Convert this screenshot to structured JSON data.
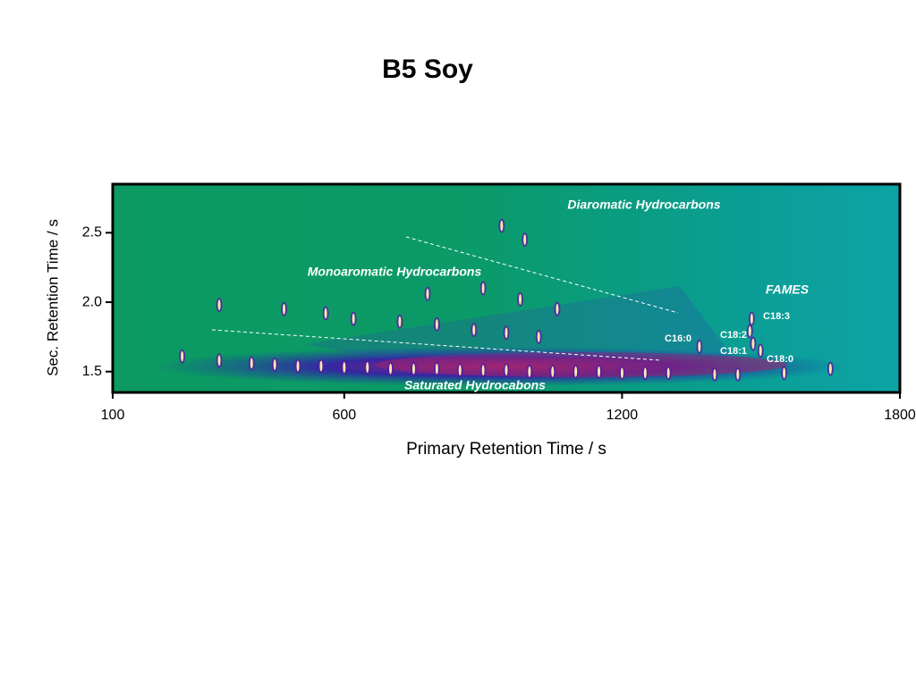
{
  "chart_data": {
    "type": "scatter",
    "title": "B5 Soy",
    "x_label": "Primary Retention Time / s",
    "y_label": "Sec. Retention Time / s",
    "x": [
      250,
      330,
      400,
      450,
      500,
      550,
      600,
      650,
      700,
      750,
      800,
      850,
      900,
      950,
      1000,
      1050,
      1100,
      1150,
      1200,
      1250,
      1300,
      1400,
      1450,
      1550,
      1650,
      330,
      470,
      560,
      620,
      720,
      800,
      880,
      950,
      1020,
      780,
      900,
      980,
      1060,
      940,
      990,
      1367,
      1476,
      1483,
      1480,
      1499
    ],
    "values": [
      1.61,
      1.58,
      1.56,
      1.55,
      1.54,
      1.54,
      1.53,
      1.53,
      1.52,
      1.52,
      1.52,
      1.51,
      1.51,
      1.51,
      1.5,
      1.5,
      1.5,
      1.5,
      1.49,
      1.49,
      1.49,
      1.48,
      1.48,
      1.49,
      1.52,
      1.98,
      1.95,
      1.92,
      1.88,
      1.86,
      1.84,
      1.8,
      1.78,
      1.75,
      2.06,
      2.1,
      2.02,
      1.95,
      2.55,
      2.45,
      1.68,
      1.79,
      1.7,
      1.88,
      1.65
    ],
    "color": "#f4e9b0",
    "xlim": [
      100,
      1800
    ],
    "ylim": [
      1.35,
      2.85
    ],
    "xticks": [
      100,
      600,
      1200,
      1800
    ],
    "yticks": [
      1.5,
      {
        "value": 2,
        "label": "2.0"
      },
      2.5
    ],
    "annotations": [
      "Diaromatic Hydrocarbons",
      "Monoaromatic Hydrocarbons",
      "FAMES",
      "Saturated Hydrocabons",
      "C18:3",
      "C18:2",
      "C18:1",
      "C16:0",
      "C18:0"
    ]
  }
}
